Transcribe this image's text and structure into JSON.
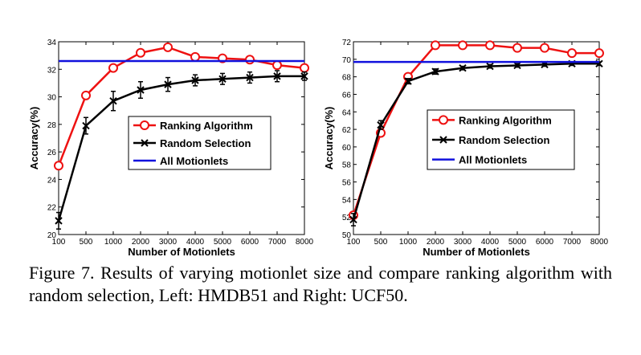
{
  "caption": "Figure 7. Results of varying motionlet size and compare ranking algorithm with random selection, Left: HMDB51 and Right: UCF50.",
  "colors": {
    "ranking": "#ee1111",
    "random": "#000000",
    "all": "#1111dd"
  },
  "chart_data": [
    {
      "type": "line",
      "xlabel": "Number of Motionlets",
      "ylabel": "Accuracy(%)",
      "categories": [
        "100",
        "500",
        "1000",
        "2000",
        "3000",
        "4000",
        "5000",
        "6000",
        "7000",
        "8000"
      ],
      "ylim": [
        20,
        34
      ],
      "yticks": [
        "20",
        "22",
        "24",
        "26",
        "28",
        "30",
        "32",
        "34"
      ],
      "grid": false,
      "legend_position": "center-right",
      "series": [
        {
          "name": "Ranking Algorithm",
          "marker": "circle",
          "values": [
            25.0,
            30.1,
            32.1,
            33.2,
            33.6,
            32.9,
            32.8,
            32.7,
            32.3,
            32.1
          ]
        },
        {
          "name": "Random Selection",
          "marker": "x",
          "values": [
            21.0,
            27.9,
            29.7,
            30.5,
            30.9,
            31.2,
            31.3,
            31.4,
            31.5,
            31.5
          ],
          "errors": [
            0.6,
            0.6,
            0.7,
            0.6,
            0.5,
            0.4,
            0.4,
            0.4,
            0.4,
            0.3
          ]
        },
        {
          "name": "All Motionlets",
          "marker": "none",
          "values": [
            32.6,
            32.6,
            32.6,
            32.6,
            32.6,
            32.6,
            32.6,
            32.6,
            32.6,
            32.6
          ]
        }
      ]
    },
    {
      "type": "line",
      "xlabel": "Number of Motionlets",
      "ylabel": "Accuracy(%)",
      "categories": [
        "100",
        "500",
        "1000",
        "2000",
        "3000",
        "4000",
        "5000",
        "6000",
        "7000",
        "8000"
      ],
      "ylim": [
        50,
        72
      ],
      "yticks": [
        "50",
        "52",
        "54",
        "56",
        "58",
        "60",
        "62",
        "64",
        "66",
        "68",
        "70",
        "72"
      ],
      "grid": false,
      "legend_position": "center-right",
      "series": [
        {
          "name": "Ranking Algorithm",
          "marker": "circle",
          "values": [
            52.2,
            61.6,
            68.0,
            71.6,
            71.6,
            71.6,
            71.3,
            71.3,
            70.7,
            70.7
          ]
        },
        {
          "name": "Random Selection",
          "marker": "x",
          "values": [
            51.7,
            62.5,
            67.5,
            68.6,
            69.0,
            69.2,
            69.3,
            69.4,
            69.5,
            69.5
          ],
          "errors": [
            0.7,
            0.5,
            0.3,
            0.3,
            0.2,
            0.2,
            0.2,
            0.2,
            0.2,
            0.2
          ]
        },
        {
          "name": "All Motionlets",
          "marker": "none",
          "values": [
            69.7,
            69.7,
            69.7,
            69.7,
            69.7,
            69.7,
            69.7,
            69.7,
            69.7,
            69.7
          ]
        }
      ]
    }
  ]
}
